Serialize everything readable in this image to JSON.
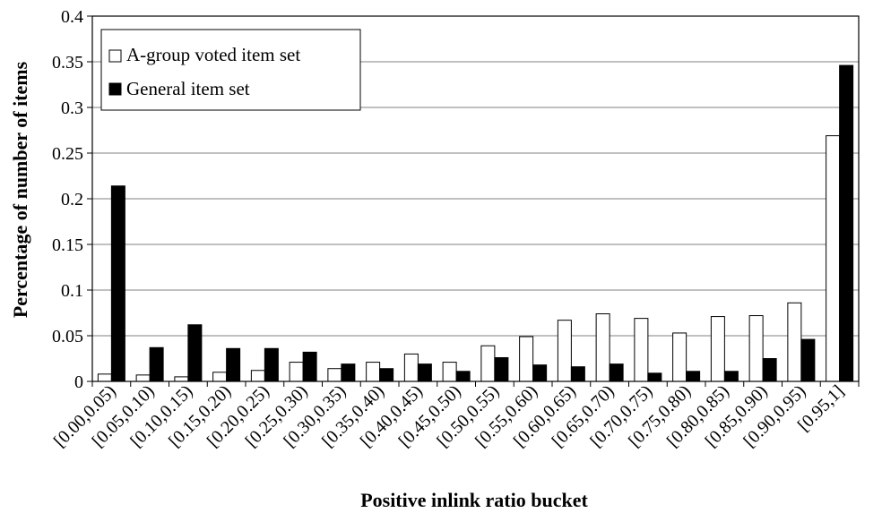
{
  "chart_data": {
    "type": "bar",
    "xlabel": "Positive inlink ratio bucket",
    "ylabel": "Percentage of number of items",
    "ylim": [
      0,
      0.4
    ],
    "yticks": [
      0,
      0.05,
      0.1,
      0.15,
      0.2,
      0.25,
      0.3,
      0.35,
      0.4
    ],
    "ytick_labels": [
      "0",
      "0.05",
      "0.1",
      "0.15",
      "0.2",
      "0.25",
      "0.3",
      "0.35",
      "0.4"
    ],
    "grid": "horizontal",
    "legend_position": "top-left",
    "categories": [
      "[0.00,0.05)",
      "[0.05,0.10)",
      "[0.10,0.15)",
      "[0.15,0.20)",
      "[0.20,0.25)",
      "[0.25,0.30)",
      "[0.30,0.35)",
      "[0.35,0.40)",
      "[0.40,0.45)",
      "[0.45,0.50)",
      "[0.50,0.55)",
      "[0.55,0.60)",
      "[0.60,0.65)",
      "[0.65,0.70)",
      "[0.70,0.75)",
      "[0.75,0.80)",
      "[0.80,0.85)",
      "[0.85,0.90)",
      "[0.90,0.95)",
      "[0.95,1]"
    ],
    "series": [
      {
        "name": "A-group voted item set",
        "color": "#ffffff",
        "values": [
          0.008,
          0.007,
          0.005,
          0.01,
          0.012,
          0.021,
          0.014,
          0.021,
          0.03,
          0.021,
          0.039,
          0.049,
          0.067,
          0.074,
          0.069,
          0.053,
          0.071,
          0.072,
          0.086,
          0.269
        ]
      },
      {
        "name": "General item set",
        "color": "#000000",
        "values": [
          0.214,
          0.037,
          0.062,
          0.036,
          0.036,
          0.032,
          0.019,
          0.014,
          0.019,
          0.011,
          0.026,
          0.018,
          0.016,
          0.019,
          0.009,
          0.011,
          0.011,
          0.025,
          0.046,
          0.346
        ]
      }
    ]
  }
}
